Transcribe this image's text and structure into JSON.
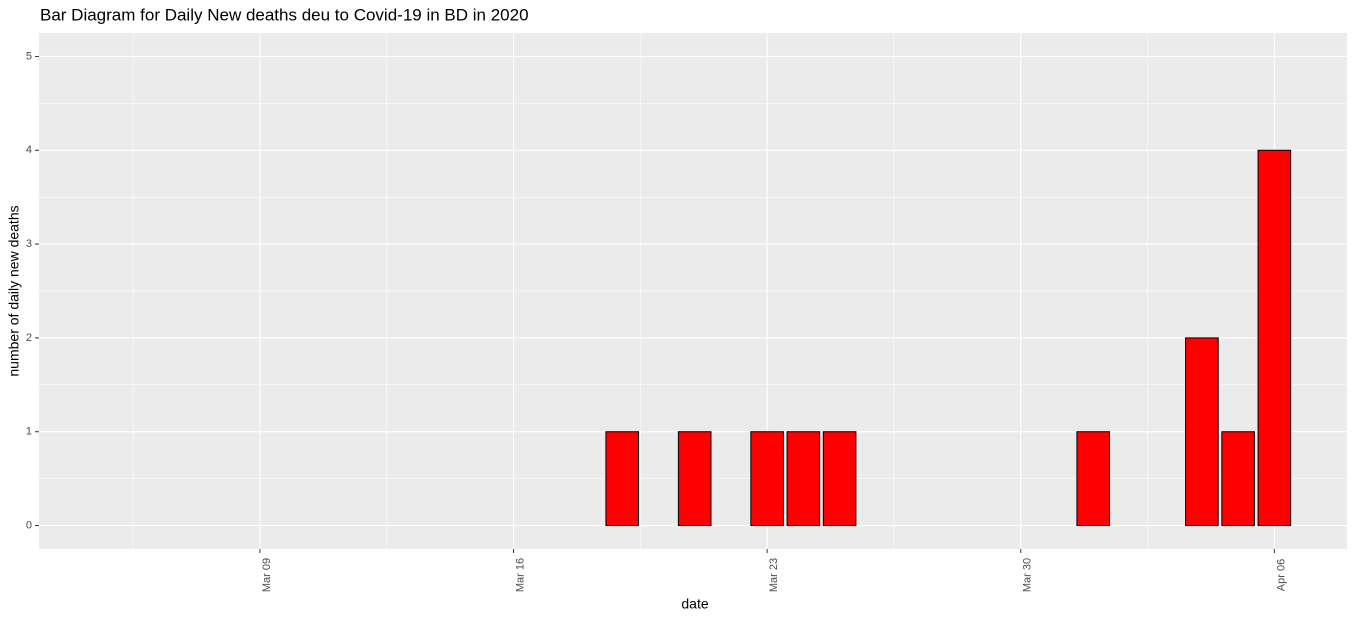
{
  "chart_data": {
    "type": "bar",
    "title": "Bar Diagram for Daily New deaths deu to Covid-19 in BD in 2020",
    "x_label": "date",
    "y_label": "number of daily new deaths",
    "x": [
      "Mar 05",
      "Mar 06",
      "Mar 07",
      "Mar 08",
      "Mar 09",
      "Mar 10",
      "Mar 11",
      "Mar 12",
      "Mar 13",
      "Mar 14",
      "Mar 15",
      "Mar 16",
      "Mar 17",
      "Mar 18",
      "Mar 19",
      "Mar 20",
      "Mar 21",
      "Mar 22",
      "Mar 23",
      "Mar 24",
      "Mar 25",
      "Mar 26",
      "Mar 27",
      "Mar 28",
      "Mar 29",
      "Mar 30",
      "Mar 31",
      "Apr 01",
      "Apr 02",
      "Apr 03",
      "Apr 04",
      "Apr 05",
      "Apr 06"
    ],
    "values": [
      0,
      0,
      0,
      0,
      0,
      0,
      0,
      0,
      0,
      0,
      0,
      0,
      0,
      0,
      1,
      0,
      1,
      0,
      1,
      1,
      1,
      0,
      0,
      0,
      0,
      0,
      0,
      1,
      0,
      0,
      2,
      1,
      4
    ],
    "color": "#ff0000",
    "xticks": [
      "Mar 09",
      "Mar 16",
      "Mar 23",
      "Mar 30",
      "Apr 06"
    ],
    "ylim": [
      -0.25,
      5.25
    ],
    "yticks": [
      0,
      1,
      2,
      3,
      4,
      5
    ],
    "grid": true
  }
}
